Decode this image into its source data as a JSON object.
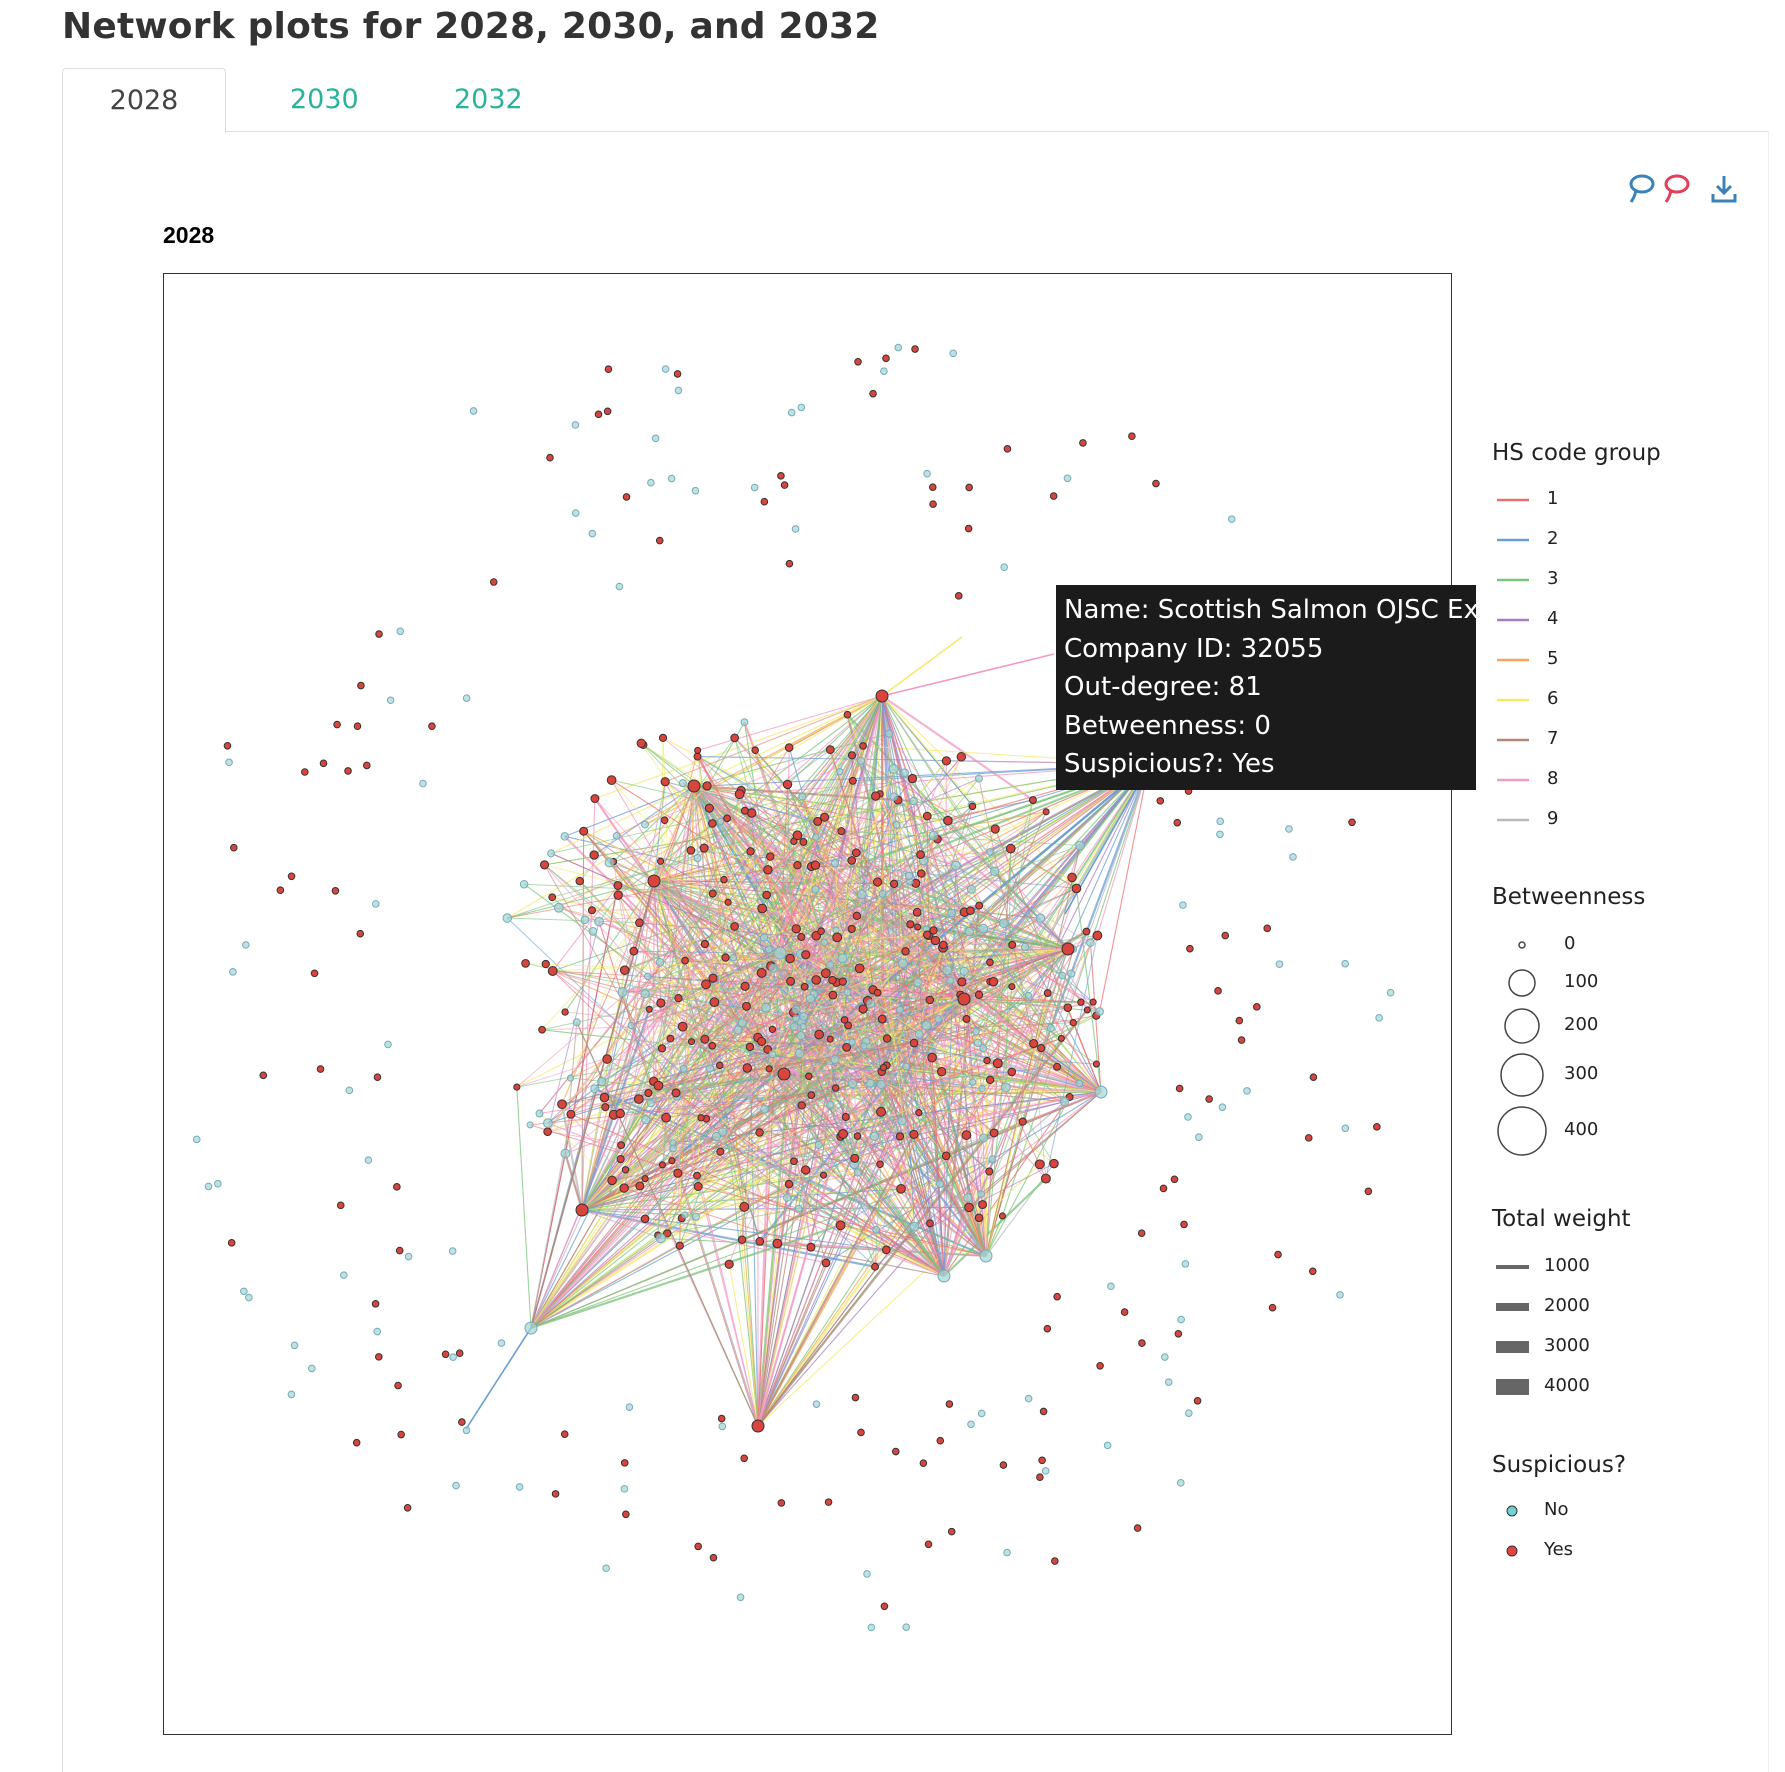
{
  "page": {
    "title": "Network plots for 2028, 2030, and 2032"
  },
  "tabs": [
    {
      "label": "2028",
      "active": true
    },
    {
      "label": "2030",
      "active": false
    },
    {
      "label": "2032",
      "active": false
    }
  ],
  "toolbar": {
    "icons": [
      "lasso-select-blue-icon",
      "lasso-select-red-icon",
      "download-icon"
    ],
    "colors": {
      "blue": "#3b82b8",
      "red": "#e0405a",
      "download": "#3b82b8"
    }
  },
  "chart_data": {
    "type": "network",
    "title": "2028",
    "tooltip": {
      "name": "Name: Scottish Salmon OJSC Export",
      "company_id": "Company ID: 32055",
      "out_degree": "Out-degree: 81",
      "betweenness": "Betweenness: 0",
      "suspicious": "Suspicious?: Yes"
    },
    "legend": {
      "hs_code_group": {
        "title": "HS code group",
        "items": [
          {
            "label": "1",
            "color": "#e8706f"
          },
          {
            "label": "2",
            "color": "#6a9ed4"
          },
          {
            "label": "3",
            "color": "#7bc47b"
          },
          {
            "label": "4",
            "color": "#a77dc0"
          },
          {
            "label": "5",
            "color": "#f7a55a"
          },
          {
            "label": "6",
            "color": "#f5ea6a"
          },
          {
            "label": "7",
            "color": "#b2887a"
          },
          {
            "label": "8",
            "color": "#f29ac3"
          },
          {
            "label": "9",
            "color": "#b9b9b9"
          }
        ]
      },
      "betweenness": {
        "title": "Betweenness",
        "items": [
          {
            "label": "0",
            "value": 0
          },
          {
            "label": "100",
            "value": 100
          },
          {
            "label": "200",
            "value": 200
          },
          {
            "label": "300",
            "value": 300
          },
          {
            "label": "400",
            "value": 400
          }
        ]
      },
      "total_weight": {
        "title": "Total weight",
        "items": [
          {
            "label": "1000",
            "value": 1000
          },
          {
            "label": "2000",
            "value": 2000
          },
          {
            "label": "3000",
            "value": 3000
          },
          {
            "label": "4000",
            "value": 4000
          }
        ]
      },
      "suspicious": {
        "title": "Suspicious?",
        "items": [
          {
            "label": "No",
            "color": "#6fd3d3"
          },
          {
            "label": "Yes",
            "color": "#e8423f"
          }
        ]
      }
    },
    "node_colors": {
      "no": "#9fd6d6",
      "yes": "#d9453d"
    }
  }
}
